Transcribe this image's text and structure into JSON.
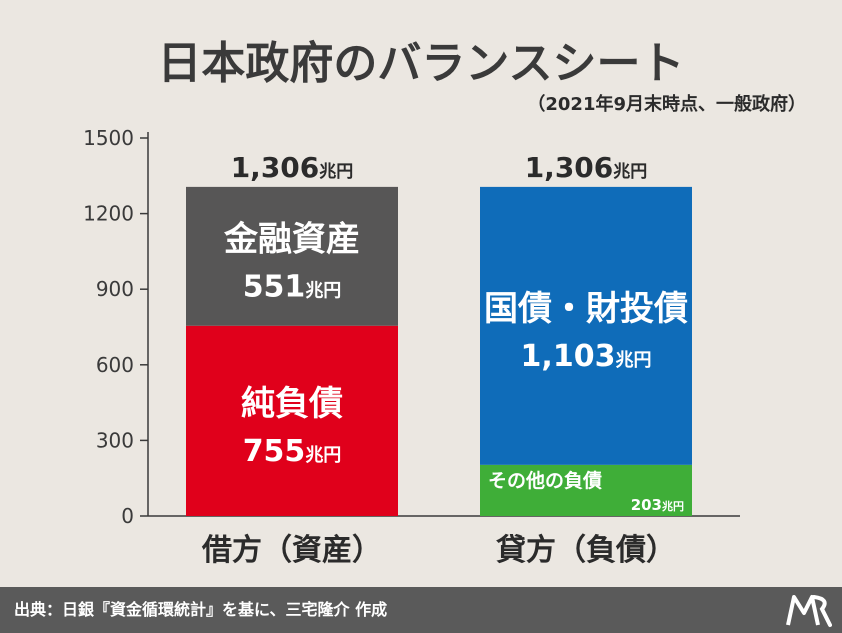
{
  "title": "日本政府のバランスシート",
  "subtitle": "（2021年9月末時点、一般政府）",
  "colors": {
    "background": "#ebe7e1",
    "financial_assets": "#575656",
    "net_debt": "#e0001b",
    "govt_bonds": "#0f6cb9",
    "other_liabilities": "#3fae38",
    "footer": "#5a5a5a"
  },
  "chart_data": {
    "type": "bar",
    "stacked": true,
    "unit": "兆円",
    "ylim": [
      0,
      1500
    ],
    "y_ticks": [
      "0",
      "300",
      "600",
      "900",
      "1200",
      "1500"
    ],
    "categories": [
      "借方（資産）",
      "貸方（負債）"
    ],
    "totals": [
      {
        "value": 1306,
        "number": "1,306",
        "unit": "兆円"
      },
      {
        "value": 1306,
        "number": "1,306",
        "unit": "兆円"
      }
    ],
    "segments": [
      {
        "category": 0,
        "name": "純負債",
        "value": 755,
        "number": "755",
        "unit": "兆円",
        "color": "#e0001b",
        "label_style": "center"
      },
      {
        "category": 0,
        "name": "金融資産",
        "value": 551,
        "number": "551",
        "unit": "兆円",
        "color": "#575656",
        "label_style": "center"
      },
      {
        "category": 1,
        "name": "その他の負債",
        "value": 203,
        "number": "203",
        "unit": "兆円",
        "color": "#3fae38",
        "label_style": "small"
      },
      {
        "category": 1,
        "name": "国債・財投債",
        "value": 1103,
        "number": "1,103",
        "unit": "兆円",
        "color": "#0f6cb9",
        "label_style": "center"
      }
    ]
  },
  "footer": {
    "source": "出典：日銀『資金循環統計』を基に、三宅隆介 作成",
    "logo_icon": "mr-logo-icon"
  }
}
